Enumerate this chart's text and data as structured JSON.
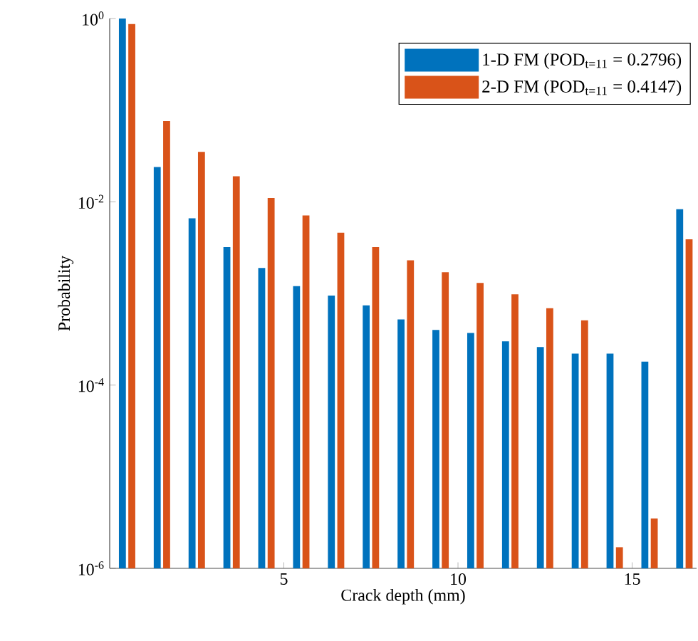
{
  "chart_data": {
    "type": "bar",
    "xlabel": "Crack depth (mm)",
    "ylabel": "Probability",
    "log": "y",
    "legend": "top right",
    "x": [
      0.5,
      1.5,
      2.5,
      3.5,
      4.5,
      5.5,
      6.5,
      7.5,
      8.5,
      9.5,
      10.5,
      11.5,
      12.5,
      13.5,
      14.5,
      15.5,
      16.5
    ],
    "xlim": [
      0,
      16.85
    ],
    "xticks": [
      5,
      10,
      15
    ],
    "ylim": [
      1e-06,
      1
    ],
    "yticks": [
      {
        "value": 1e-06,
        "label": "10$^{-6}$"
      },
      {
        "value": 0.0001,
        "label": "10$^{-4}$"
      },
      {
        "value": 0.01,
        "label": "10$^{-2}$"
      },
      {
        "value": 1,
        "label": "10$^{0}$"
      }
    ],
    "series": [
      {
        "name": "1-D FM (POD$_{t=11}$ = 0.2796)",
        "color": "#0072bd",
        "values": [
          1,
          0.024,
          0.0066,
          0.0032,
          0.0019,
          0.0012,
          0.00095,
          0.00074,
          0.00052,
          0.0004,
          0.00037,
          0.0003,
          0.00026,
          0.00022,
          0.00022,
          0.00018,
          0.0083
        ]
      },
      {
        "name": "2-D FM (POD$_{t=11}$ = 0.4147)",
        "color": "#d95319",
        "values": [
          0.87,
          0.076,
          0.035,
          0.019,
          0.011,
          0.0071,
          0.0046,
          0.0032,
          0.0023,
          0.0017,
          0.0013,
          0.00098,
          0.00069,
          0.00051,
          1.7e-06,
          3.5e-06,
          0.0039
        ]
      }
    ]
  }
}
